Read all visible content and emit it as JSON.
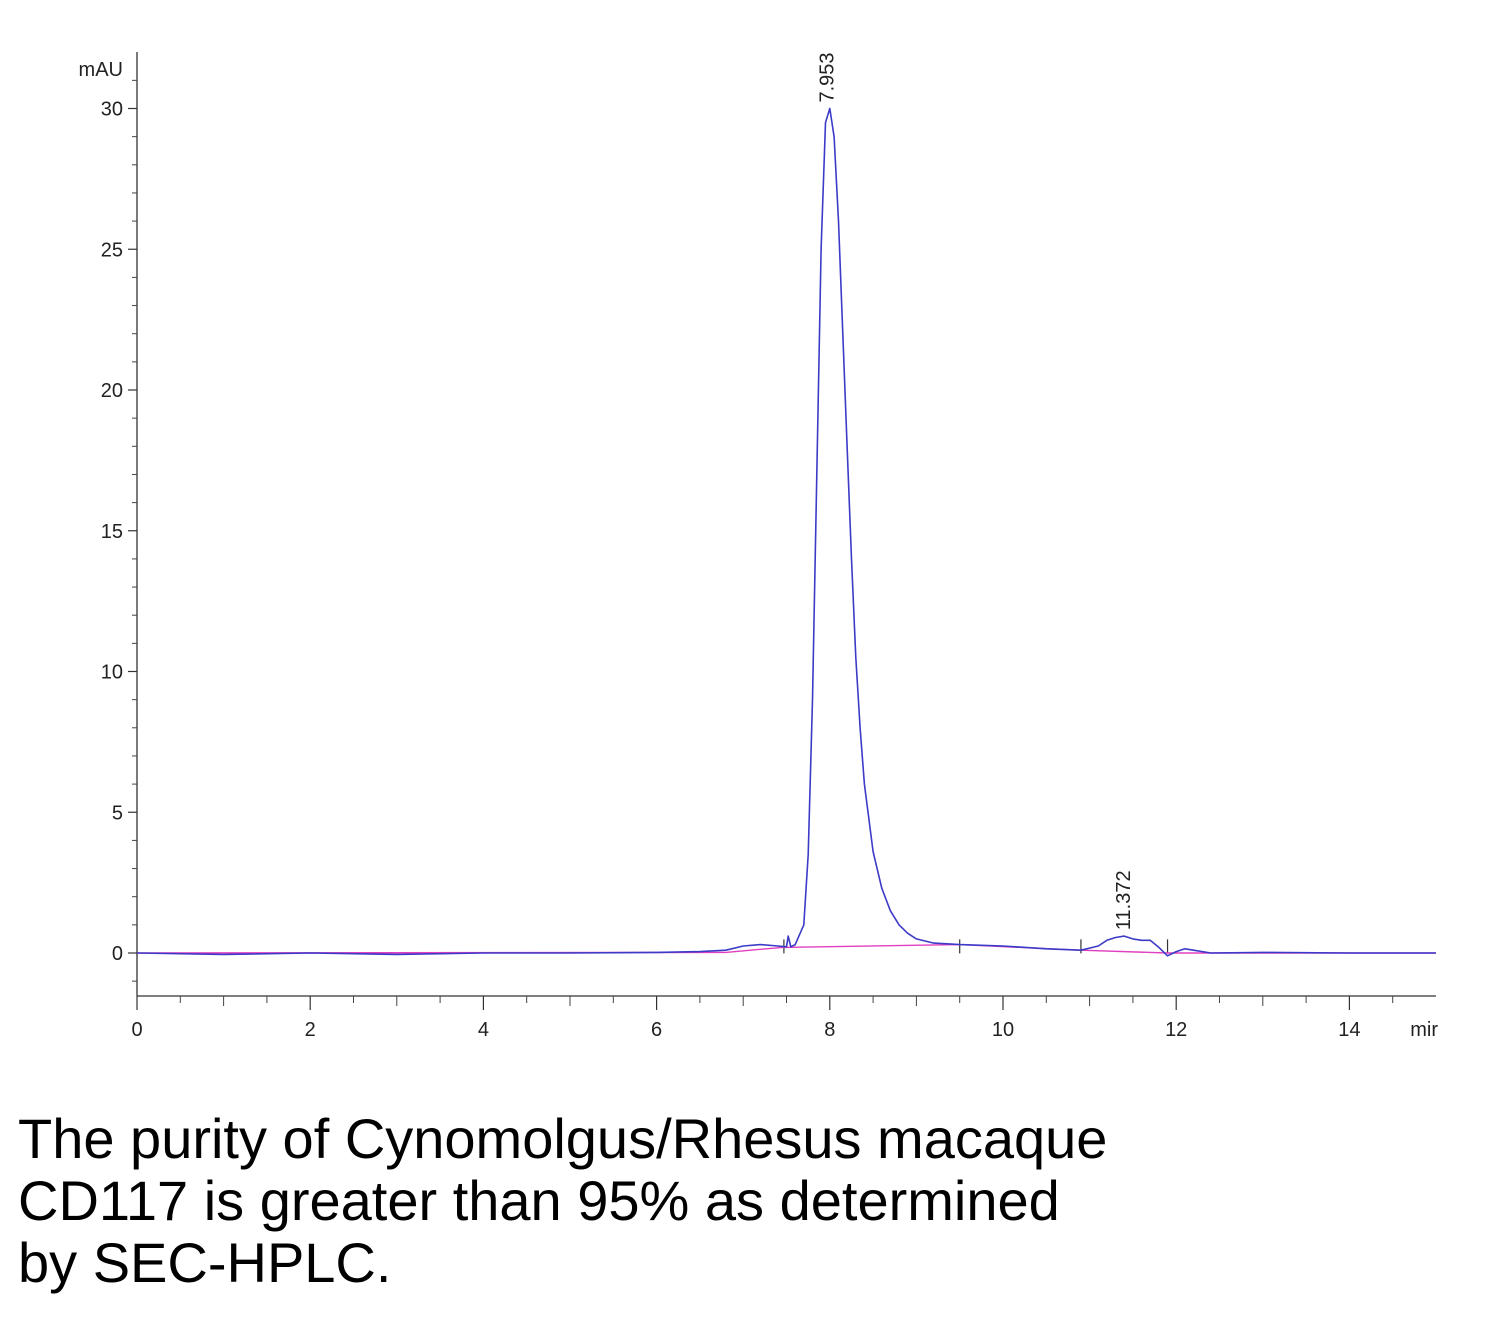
{
  "chart_data": {
    "type": "line",
    "title": "",
    "ylabel": "mAU",
    "xunit": "mir",
    "xlim": [
      0,
      15
    ],
    "ylim": [
      -1.5,
      31.5
    ],
    "grid": false,
    "x_ticks": [
      0,
      2,
      4,
      6,
      8,
      10,
      12,
      14
    ],
    "x_tick_labels": [
      "0",
      "2",
      "4",
      "6",
      "8",
      "10",
      "12",
      "14"
    ],
    "y_ticks": [
      0,
      5,
      10,
      15,
      20,
      25,
      30
    ],
    "y_tick_labels": [
      "0",
      "5",
      "10",
      "15",
      "20",
      "25",
      "30"
    ],
    "peak_labels": [
      {
        "x": 7.953,
        "y": 30.0,
        "text": "7.953"
      },
      {
        "x": 11.372,
        "y": 0.6,
        "text": "11.372"
      }
    ],
    "series": [
      {
        "color": "#3b3bc8",
        "x": [
          0,
          1,
          2,
          3,
          4,
          5,
          6,
          6.5,
          6.8,
          7.0,
          7.2,
          7.4,
          7.5,
          7.52,
          7.55,
          7.6,
          7.7,
          7.75,
          7.8,
          7.85,
          7.9,
          7.95,
          8.0,
          8.05,
          8.1,
          8.15,
          8.2,
          8.25,
          8.3,
          8.35,
          8.4,
          8.5,
          8.6,
          8.7,
          8.8,
          8.9,
          9.0,
          9.2,
          9.5,
          10.0,
          10.5,
          10.9,
          11.1,
          11.2,
          11.3,
          11.4,
          11.5,
          11.6,
          11.7,
          11.8,
          11.9,
          12.0,
          12.1,
          12.2,
          12.4,
          13,
          14,
          15
        ],
        "y": [
          0,
          -0.05,
          0,
          -0.05,
          0,
          0,
          0.02,
          0.05,
          0.1,
          0.25,
          0.3,
          0.25,
          0.22,
          0.6,
          0.22,
          0.3,
          1.0,
          3.5,
          9.0,
          17.0,
          25.0,
          29.5,
          30.0,
          29.0,
          26.0,
          22.0,
          18.0,
          14.0,
          10.5,
          8.0,
          6.0,
          3.6,
          2.3,
          1.5,
          1.0,
          0.7,
          0.5,
          0.35,
          0.3,
          0.25,
          0.15,
          0.1,
          0.25,
          0.45,
          0.55,
          0.6,
          0.5,
          0.45,
          0.45,
          0.2,
          -0.1,
          0.05,
          0.15,
          0.1,
          0.0,
          0.02,
          0.0,
          0.0
        ]
      },
      {
        "color": "#e040c0",
        "x": [
          0,
          6.8,
          7.45,
          9.5,
          10.9,
          11.9,
          15
        ],
        "y": [
          0,
          0.02,
          0.2,
          0.3,
          0.1,
          0.0,
          0.0
        ]
      }
    ]
  },
  "caption": {
    "line1": "The purity of Cynomolgus/Rhesus macaque",
    "line2": "CD117 is greater than 95% as determined",
    "line3": "by SEC-HPLC."
  }
}
